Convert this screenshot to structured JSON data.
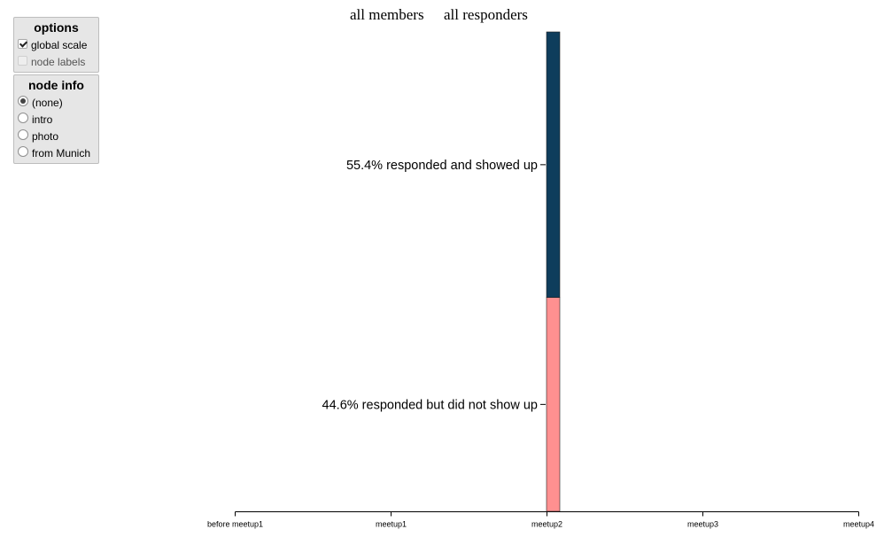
{
  "options_panel": {
    "title": "options",
    "items": [
      {
        "label": "global scale",
        "checked": true,
        "enabled": true
      },
      {
        "label": "node labels",
        "checked": false,
        "enabled": false
      }
    ]
  },
  "node_info_panel": {
    "title": "node info",
    "selected": "(none)",
    "items": [
      {
        "label": "(none)"
      },
      {
        "label": "intro"
      },
      {
        "label": "photo"
      },
      {
        "label": "from Munich"
      }
    ]
  },
  "header_tabs": {
    "all_members": "all members",
    "all_responders": "all responders"
  },
  "chart_data": {
    "type": "bar",
    "orientation": "stacked-vertical",
    "x": [
      "before meetup1",
      "meetup1",
      "meetup2",
      "meetup3",
      "meetup4"
    ],
    "bar_at": "meetup2",
    "series": [
      {
        "label": "55.4% responded and showed up",
        "value": 55.4,
        "color": "#0e3d5c"
      },
      {
        "label": "44.6% responded but did not show up",
        "value": 44.6,
        "color": "#ff9090"
      }
    ],
    "ylim": [
      0,
      100
    ]
  }
}
